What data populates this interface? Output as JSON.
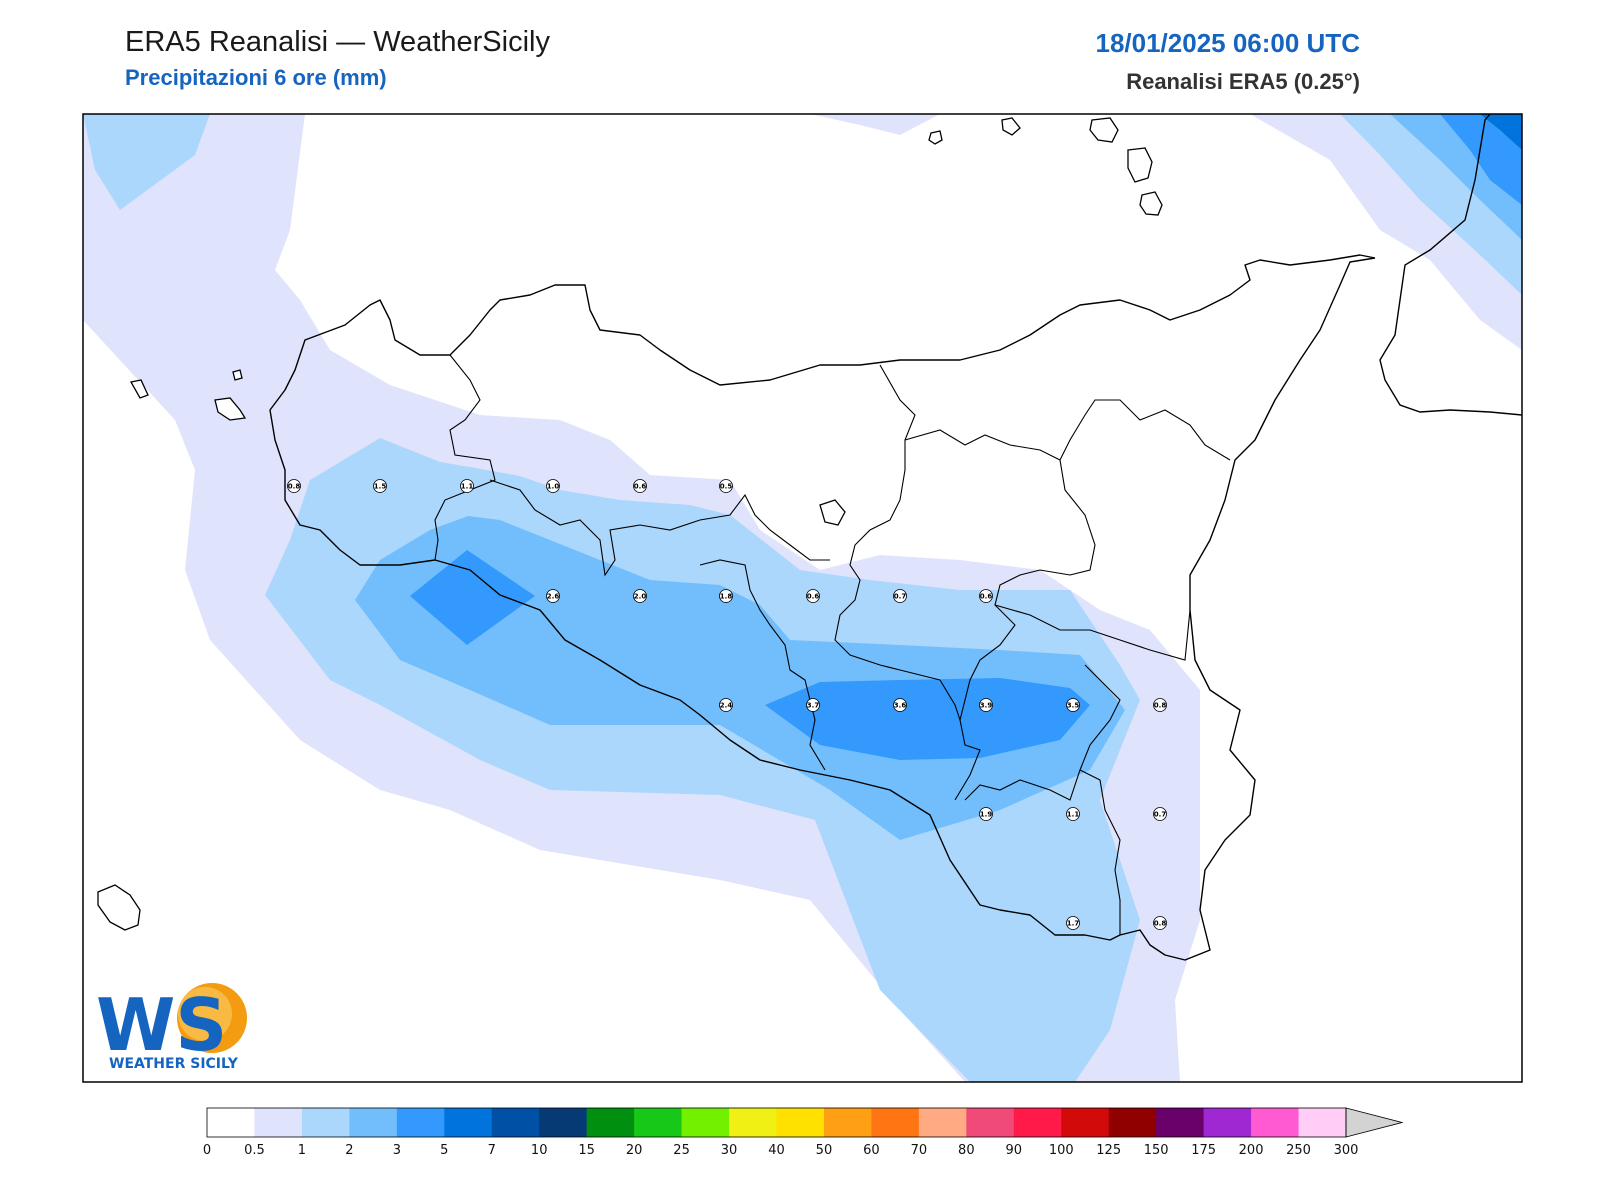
{
  "header": {
    "title": "ERA5 Reanalisi — WeatherSicily",
    "subtitle": "Precipitazioni 6 ore (mm)",
    "date": "18/01/2025 06:00 UTC",
    "source": "Reanalisi ERA5 (0.25°)"
  },
  "logo": {
    "letters": "WS",
    "name": "WEATHER SICILY"
  },
  "map_values": [
    {
      "value": "0.8"
    },
    {
      "value": "1.5"
    },
    {
      "value": "1.1"
    },
    {
      "value": "1.0"
    },
    {
      "value": "0.6"
    },
    {
      "value": "0.5"
    },
    {
      "value": "2.6"
    },
    {
      "value": "2.0"
    },
    {
      "value": "1.8"
    },
    {
      "value": "0.6"
    },
    {
      "value": "0.7"
    },
    {
      "value": "0.6"
    },
    {
      "value": "2.4"
    },
    {
      "value": "3.7"
    },
    {
      "value": "3.6"
    },
    {
      "value": "3.9"
    },
    {
      "value": "3.5"
    },
    {
      "value": "0.8"
    },
    {
      "value": "1.9"
    },
    {
      "value": "1.1"
    },
    {
      "value": "0.7"
    },
    {
      "value": "1.7"
    },
    {
      "value": "0.8"
    }
  ],
  "colorbar": {
    "labels": [
      "0",
      "0.5",
      "1",
      "2",
      "3",
      "5",
      "7",
      "10",
      "15",
      "20",
      "25",
      "30",
      "40",
      "50",
      "60",
      "70",
      "80",
      "90",
      "100",
      "125",
      "150",
      "175",
      "200",
      "250",
      "300"
    ],
    "colors": [
      "#ffffff",
      "#e0e3fc",
      "#abd7fc",
      "#72befc",
      "#3399fc",
      "#0073dd",
      "#0050a6",
      "#053a75",
      "#008f0f",
      "#18c818",
      "#73f000",
      "#f0f014",
      "#ffe100",
      "#ff9f14",
      "#ff7514",
      "#ffaa82",
      "#ef4a78",
      "#ff1a4a",
      "#d20a0a",
      "#910000",
      "#6a006a",
      "#a028d2",
      "#ff5ad2",
      "#ffcdf5"
    ],
    "extend_color": "#d3d3d3"
  }
}
